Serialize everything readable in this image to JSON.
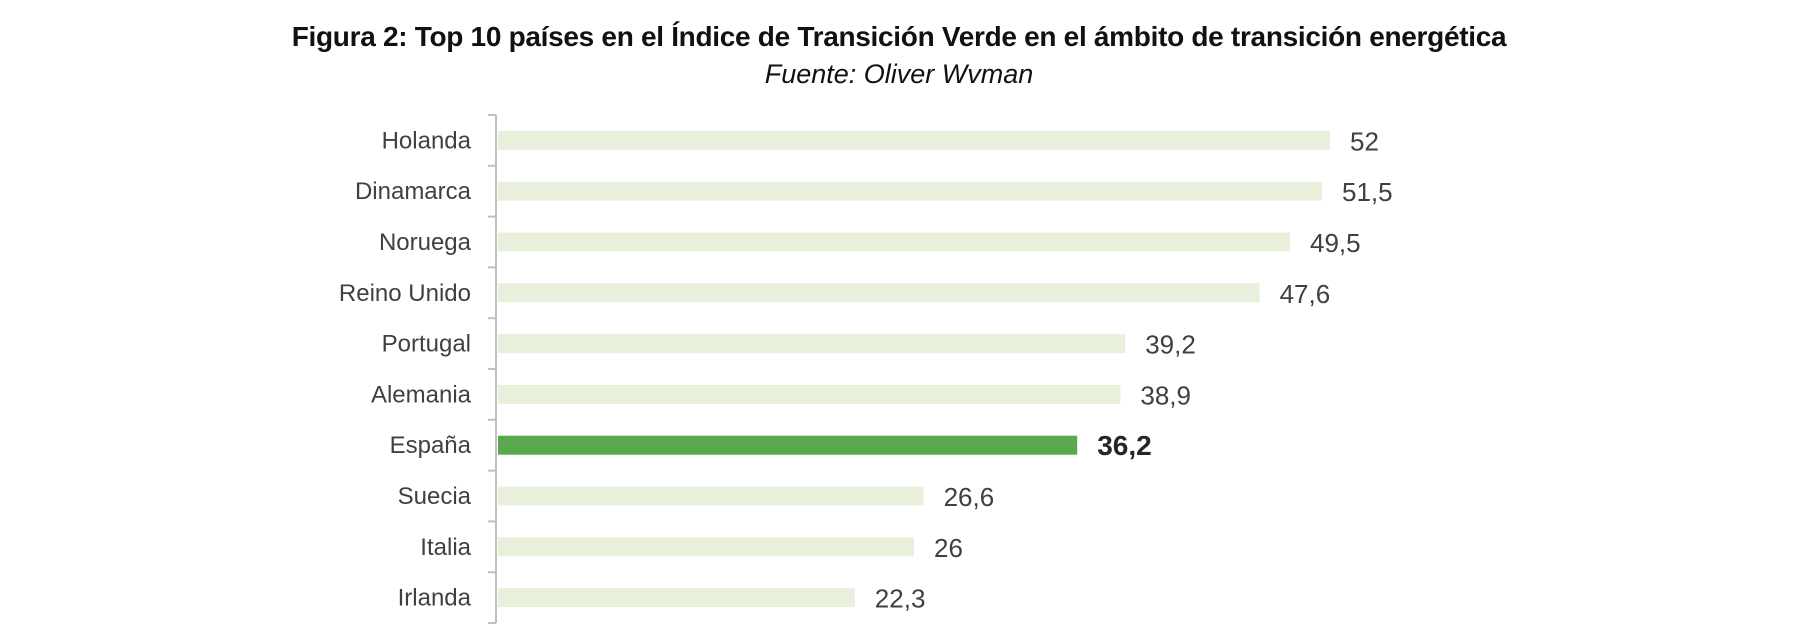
{
  "chart_data": {
    "type": "bar",
    "orientation": "horizontal",
    "title": "Figura 2: Top 10 países en el Índice de Transición Verde en el ámbito de transición energética",
    "subtitle": "Fuente: Oliver Wvman",
    "categories": [
      "Holanda",
      "Dinamarca",
      "Noruega",
      "Reino Unido",
      "Portugal",
      "Alemania",
      "España",
      "Suecia",
      "Italia",
      "Irlanda"
    ],
    "values": [
      52,
      51.5,
      49.5,
      47.6,
      39.2,
      38.9,
      36.2,
      26.6,
      26,
      22.3
    ],
    "data_labels": [
      "52",
      "51,5",
      "49,5",
      "47,6",
      "39,2",
      "38,9",
      "36,2",
      "26,6",
      "26",
      "22,3"
    ],
    "highlight_category": "España",
    "xlim": [
      0,
      60
    ],
    "grid": false,
    "legend": "none",
    "colors": {
      "bar": "#e8f0dc",
      "highlight": "#5aa84e",
      "axis": "#bfbfbf"
    }
  }
}
